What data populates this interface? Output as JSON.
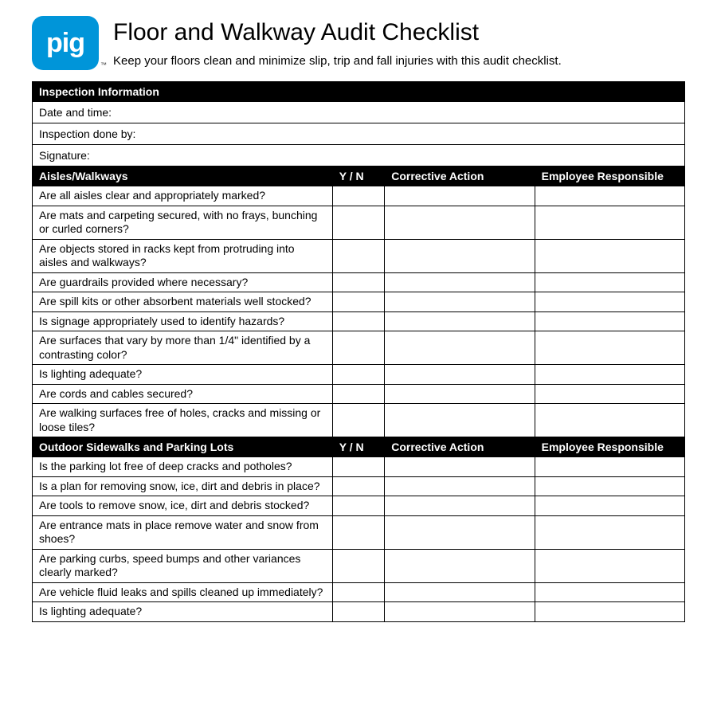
{
  "logo": {
    "text": "pig",
    "tm": "™"
  },
  "title": "Floor and Walkway Audit Checklist",
  "subtitle": "Keep your floors clean and minimize slip, trip and fall injuries with this audit checklist.",
  "colors": {
    "brand": "#0095d9",
    "header_bg": "#000000",
    "header_fg": "#ffffff",
    "border": "#000000"
  },
  "columns": {
    "yn": "Y / N",
    "corrective": "Corrective Action",
    "employee": "Employee Responsible"
  },
  "sections": [
    {
      "title": "Inspection Information",
      "type": "info",
      "fields": [
        "Date and time:",
        "Inspection done by:",
        "Signature:"
      ]
    },
    {
      "title": "Aisles/Walkways",
      "type": "checklist",
      "questions": [
        "Are all aisles clear and appropriately marked?",
        "Are mats and carpeting secured, with no frays, bunching or curled corners?",
        "Are objects stored in racks kept from protruding into aisles and walkways?",
        "Are guardrails provided where necessary?",
        "Are spill kits or other absorbent materials well stocked?",
        "Is signage appropriately used to identify hazards?",
        "Are surfaces that vary by more than 1/4\" identified by a contrasting color?",
        "Is lighting adequate?",
        "Are cords and cables secured?",
        "Are walking surfaces free of holes, cracks and missing or loose tiles?"
      ]
    },
    {
      "title": "Outdoor Sidewalks and Parking Lots",
      "type": "checklist",
      "questions": [
        "Is the parking lot free of deep cracks and potholes?",
        "Is a plan for removing snow, ice, dirt and debris in place?",
        "Are tools to remove snow, ice, dirt and debris stocked?",
        "Are entrance mats in place remove water and snow from shoes?",
        "Are parking curbs, speed bumps and other variances clearly marked?",
        "Are vehicle fluid leaks and spills cleaned up immediately?",
        "Is lighting adequate?"
      ]
    }
  ]
}
